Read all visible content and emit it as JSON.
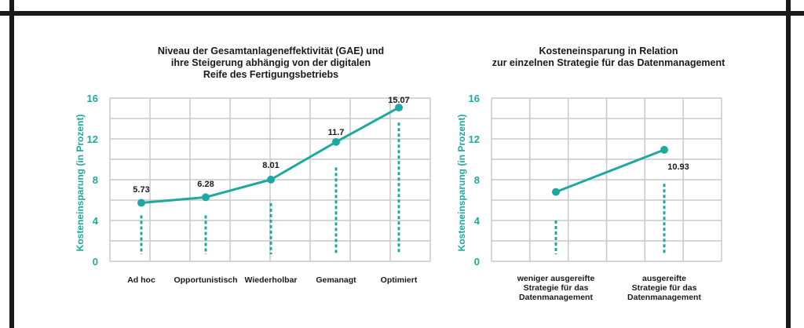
{
  "colors": {
    "accent": "#1fa89f",
    "grid": "#c8c8c8",
    "frame": "#1a1a1a",
    "text": "#1a1a1a"
  },
  "chart_data": [
    {
      "type": "line",
      "title_lines": [
        "Niveau der Gesamtanlageneffektivität (GAE) und",
        "ihre Steigerung abhängig von der digitalen",
        "Reife des Fertigungsbetriebs"
      ],
      "ylabel": "Kosteneinsparung (in Prozent)",
      "ylim": [
        0,
        16
      ],
      "yticks": [
        "0",
        "4",
        "8",
        "12",
        "16"
      ],
      "categories": [
        "Ad hoc",
        "Opportunistisch",
        "Wiederholbar",
        "Gemanagt",
        "Optimiert"
      ],
      "values": [
        5.73,
        6.28,
        8.01,
        11.7,
        15.07
      ],
      "value_labels": [
        "5.73",
        "6.28",
        "8.01",
        "11.7",
        "15.07"
      ],
      "dotted_top": [
        4.5,
        4.5,
        5.7,
        9.2,
        13.6
      ]
    },
    {
      "type": "line",
      "title_lines": [
        "Kosteneinsparung in Relation",
        "zur einzelnen Strategie für das Datenmanagement"
      ],
      "ylabel": "Kosteneinsparung (in Prozent)",
      "ylim": [
        0,
        16
      ],
      "yticks": [
        "0",
        "4",
        "8",
        "12",
        "16"
      ],
      "categories": [
        [
          "weniger ausgereifte",
          "Strategie für das",
          "Datenmanagement"
        ],
        [
          "ausgereifte",
          "Strategie für das",
          "Datenmanagement"
        ]
      ],
      "values": [
        6.8,
        10.93
      ],
      "value_labels": [
        "",
        "10.93"
      ],
      "dotted_top": [
        4.0,
        7.6
      ]
    }
  ]
}
